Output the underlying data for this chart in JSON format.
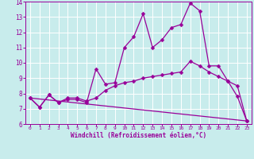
{
  "xlabel": "Windchill (Refroidissement éolien,°C)",
  "bg_color": "#c8ecec",
  "line_color": "#990099",
  "grid_color": "#ffffff",
  "xlim": [
    -0.5,
    23.5
  ],
  "ylim": [
    6,
    14
  ],
  "xticks": [
    0,
    1,
    2,
    3,
    4,
    5,
    6,
    7,
    8,
    9,
    10,
    11,
    12,
    13,
    14,
    15,
    16,
    17,
    18,
    19,
    20,
    21,
    22,
    23
  ],
  "yticks": [
    6,
    7,
    8,
    9,
    10,
    11,
    12,
    13,
    14
  ],
  "line1_x": [
    0,
    1,
    2,
    3,
    4,
    5,
    6,
    7,
    8,
    9,
    10,
    11,
    12,
    13,
    14,
    15,
    16,
    17,
    18,
    19,
    20,
    21,
    22,
    23
  ],
  "line1_y": [
    7.7,
    7.1,
    7.9,
    7.4,
    7.6,
    7.6,
    7.4,
    9.6,
    8.6,
    8.7,
    11.0,
    11.7,
    13.2,
    11.0,
    11.5,
    12.3,
    12.5,
    13.9,
    13.4,
    9.8,
    9.8,
    8.8,
    7.8,
    6.2
  ],
  "line2_x": [
    0,
    1,
    2,
    3,
    4,
    5,
    6,
    7,
    8,
    9,
    10,
    11,
    12,
    13,
    14,
    15,
    16,
    17,
    18,
    19,
    20,
    21,
    22,
    23
  ],
  "line2_y": [
    7.7,
    7.1,
    7.9,
    7.4,
    7.7,
    7.7,
    7.5,
    7.7,
    8.2,
    8.5,
    8.7,
    8.8,
    9.0,
    9.1,
    9.2,
    9.3,
    9.4,
    10.1,
    9.8,
    9.4,
    9.1,
    8.8,
    8.5,
    6.2
  ],
  "line3_x": [
    0,
    23
  ],
  "line3_y": [
    7.7,
    6.2
  ],
  "markersize": 2.5,
  "linewidth": 0.9
}
